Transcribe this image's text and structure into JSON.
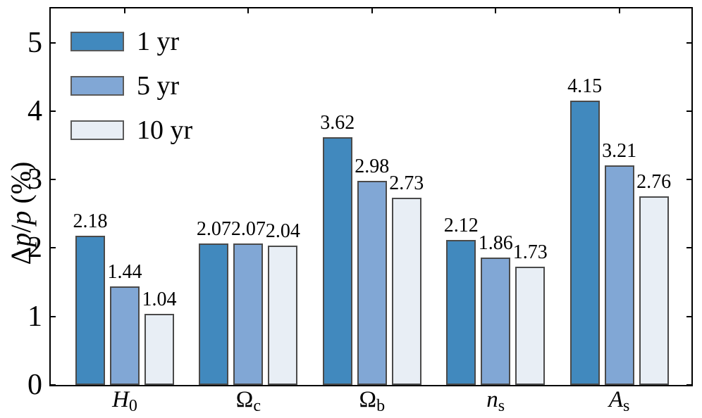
{
  "chart_data": {
    "type": "bar",
    "title": "",
    "xlabel": "",
    "ylabel": "Δp/p (%)",
    "ylabel_parts": [
      {
        "text": "Δ",
        "italic": false
      },
      {
        "text": "p",
        "italic": true
      },
      {
        "text": "/",
        "italic": false
      },
      {
        "text": "p",
        "italic": true
      },
      {
        "text": " (%)",
        "italic": false
      }
    ],
    "categories": [
      "H0",
      "Ωc",
      "Ωb",
      "ns",
      "As"
    ],
    "categories_rich": [
      {
        "base": "H",
        "sub": "0",
        "italic": true
      },
      {
        "base": "Ω",
        "sub": "c",
        "italic": false
      },
      {
        "base": "Ω",
        "sub": "b",
        "italic": false
      },
      {
        "base": "n",
        "sub": "s",
        "italic": true
      },
      {
        "base": "A",
        "sub": "s",
        "italic": true
      }
    ],
    "series": [
      {
        "name": "1 yr",
        "color": "#4189be",
        "values": [
          2.18,
          2.07,
          3.62,
          2.12,
          4.15
        ]
      },
      {
        "name": "5 yr",
        "color": "#81a7d5",
        "values": [
          1.44,
          2.07,
          2.98,
          1.86,
          3.21
        ]
      },
      {
        "name": "10 yr",
        "color": "#e8eef5",
        "values": [
          1.04,
          2.04,
          2.73,
          1.73,
          2.76
        ]
      }
    ],
    "yticks": [
      "0",
      "1",
      "2",
      "3",
      "4",
      "5"
    ],
    "ylim": [
      0,
      5.5
    ],
    "grid": false,
    "legend_position": "upper-left",
    "colors": {
      "axis": "#000000",
      "bar_edge": "#4a4a4a",
      "legend_edge": "#5a5a5a",
      "text": "#000000"
    }
  }
}
